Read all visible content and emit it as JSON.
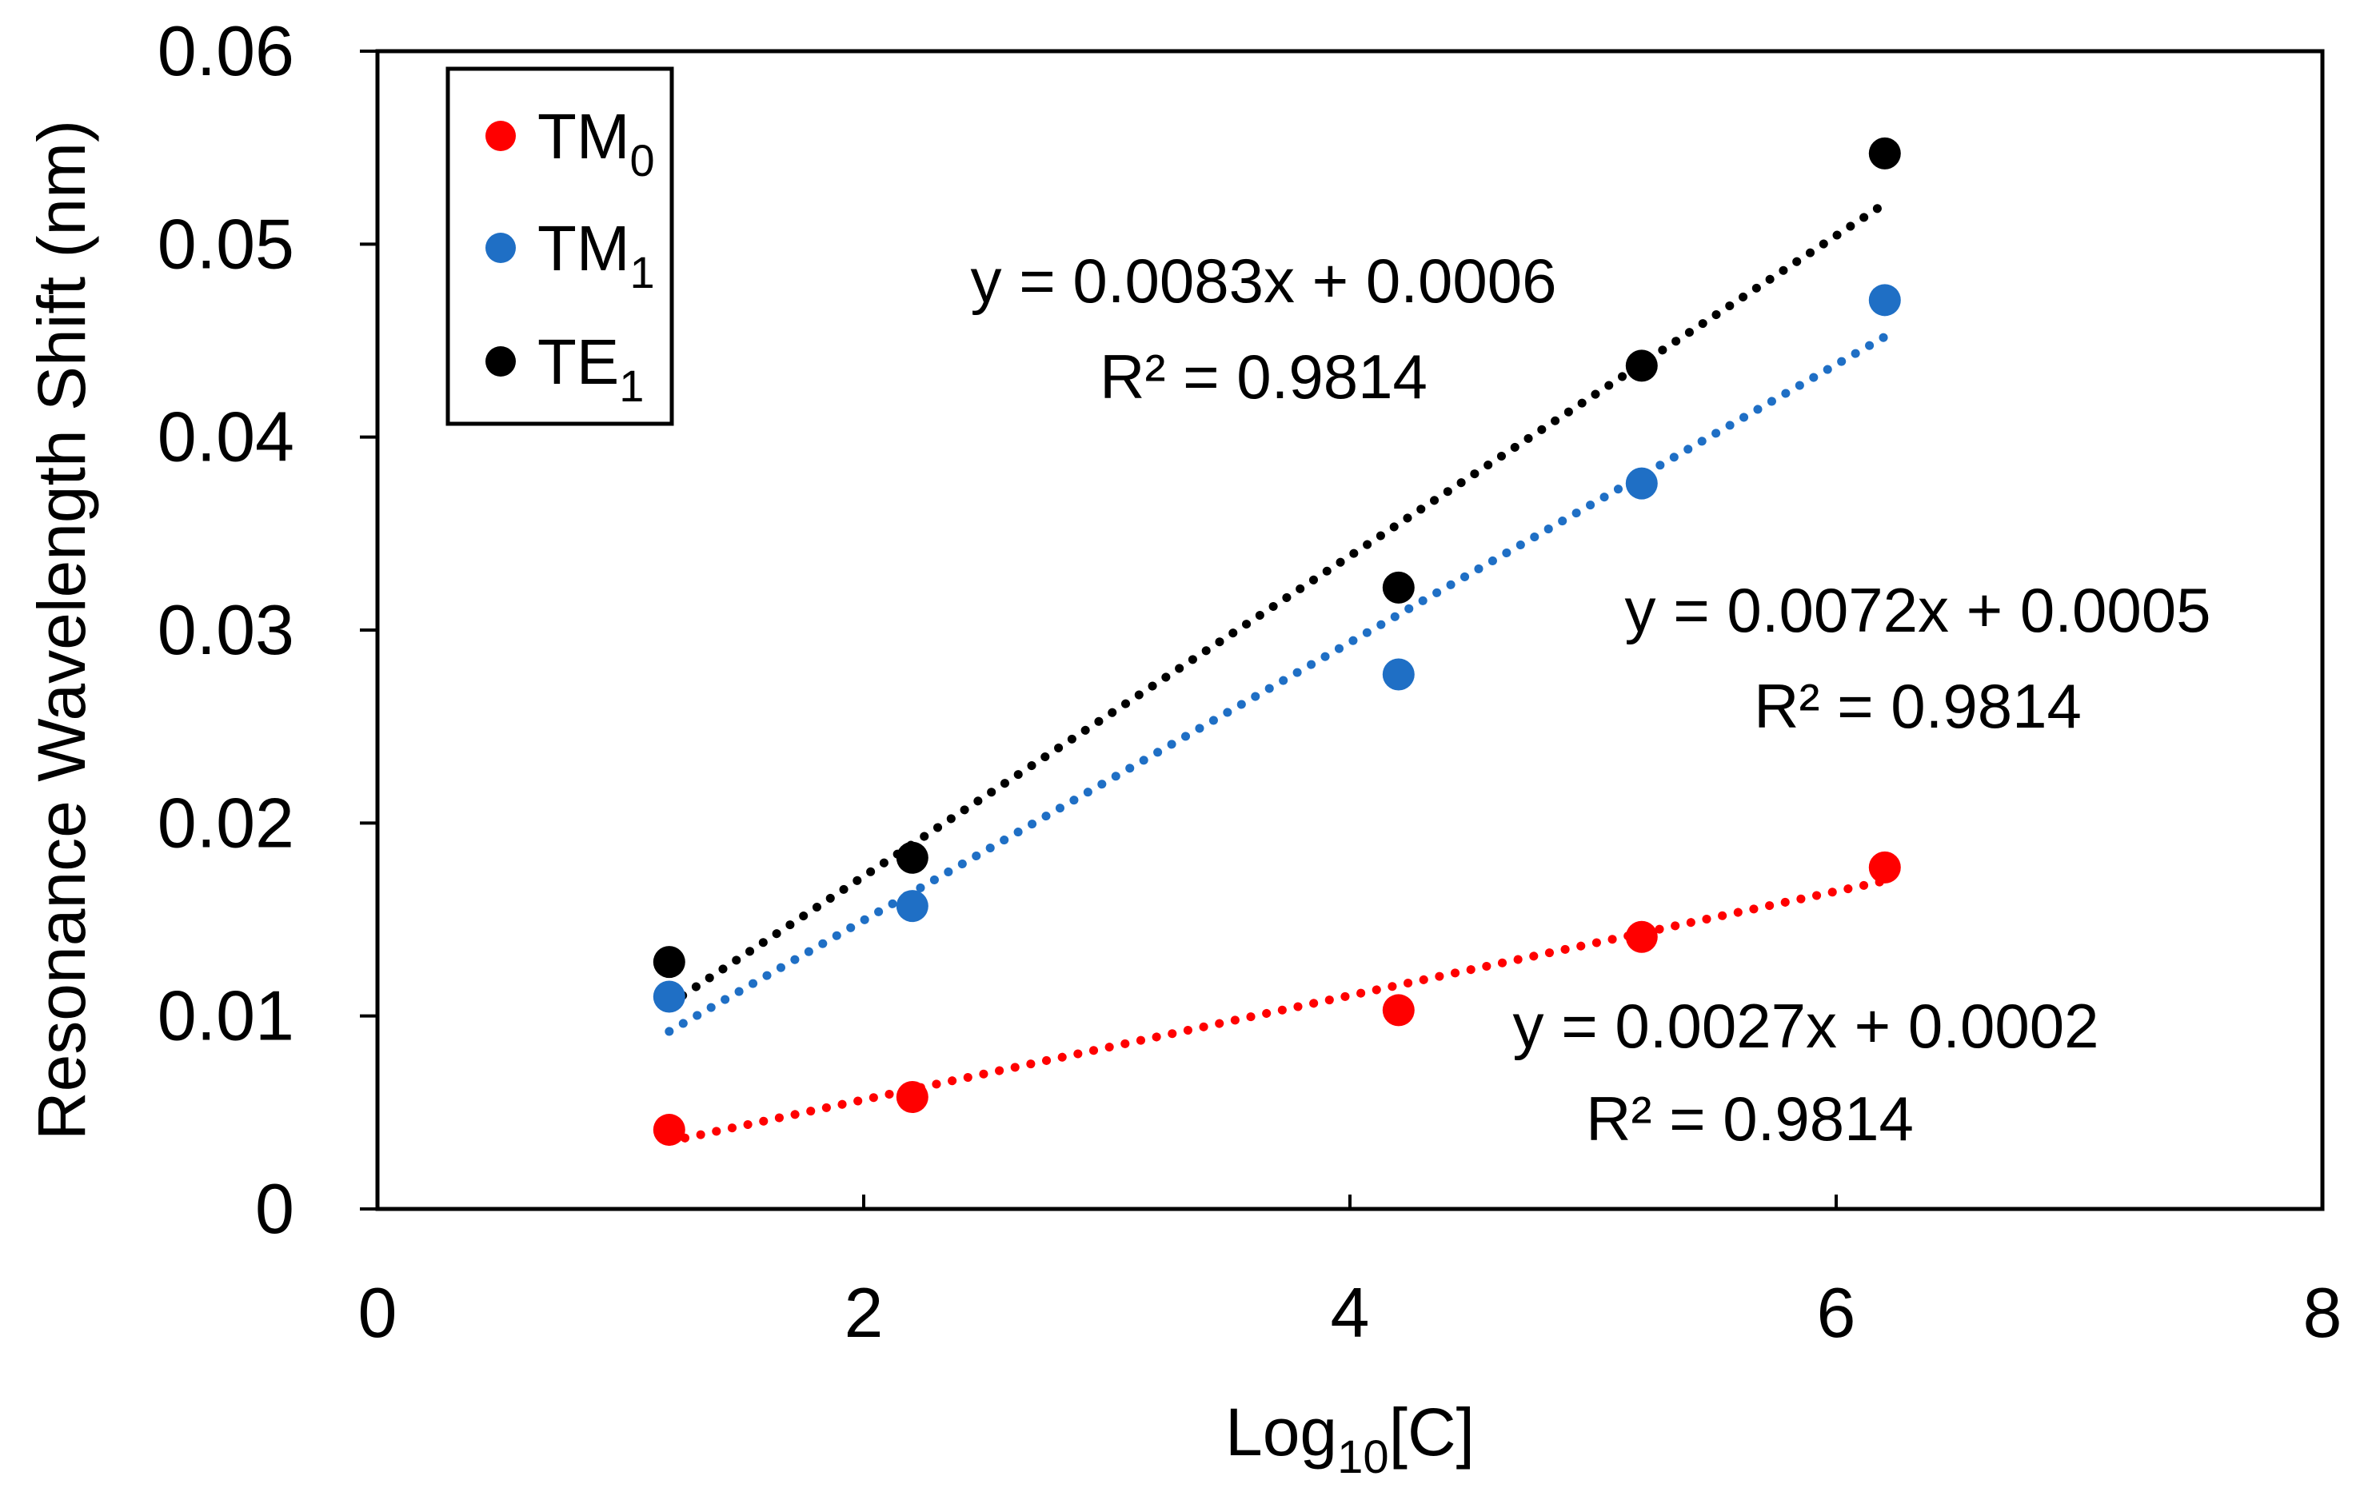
{
  "chart_data": {
    "type": "scatter",
    "title": "",
    "xlabel": {
      "main": "Log",
      "sub": "10",
      "tail": "[C]"
    },
    "ylabel": "Resonance Wavelength Shift (nm)",
    "xlim": [
      0,
      8
    ],
    "ylim": [
      0,
      0.06
    ],
    "x_ticks": [
      0,
      2,
      4,
      6,
      8
    ],
    "x_tick_labels": [
      "0",
      "2",
      "4",
      "6",
      "8"
    ],
    "y_ticks": [
      0,
      0.01,
      0.02,
      0.03,
      0.04,
      0.05,
      0.06
    ],
    "y_tick_labels": [
      "0",
      "0.01",
      "0.02",
      "0.03",
      "0.04",
      "0.05",
      "0.06"
    ],
    "grid": false,
    "legend_position": "top-left",
    "series": [
      {
        "name": "TM0",
        "label_main": "TM",
        "label_sub": "0",
        "color": "#ff0000",
        "x": [
          1.2,
          2.2,
          4.2,
          5.2,
          6.2
        ],
        "y": [
          0.0041,
          0.0058,
          0.0103,
          0.0141,
          0.0177
        ],
        "trendline": {
          "x": [
            1.2,
            6.2
          ],
          "y": [
            0.0035,
            0.017
          ]
        },
        "equation": "y = 0.0027x + 0.0002",
        "r2_label": "R² = 0.9814"
      },
      {
        "name": "TM1",
        "label_main": "TM",
        "label_sub": "1",
        "color": "#1f6fc5",
        "x": [
          1.2,
          2.2,
          4.2,
          5.2,
          6.2
        ],
        "y": [
          0.011,
          0.0157,
          0.0277,
          0.0376,
          0.0471
        ],
        "trendline": {
          "x": [
            1.2,
            6.2
          ],
          "y": [
            0.0092,
            0.0452
          ]
        },
        "equation": "y = 0.0072x + 0.0005",
        "r2_label": "R² = 0.9814"
      },
      {
        "name": "TE1",
        "label_main": "TE",
        "label_sub": "1",
        "color": "#000000",
        "x": [
          1.2,
          2.2,
          4.2,
          5.2,
          6.2
        ],
        "y": [
          0.0128,
          0.0182,
          0.0322,
          0.0437,
          0.0547
        ],
        "trendline": {
          "x": [
            1.2,
            6.2
          ],
          "y": [
            0.0106,
            0.0521
          ]
        },
        "equation": "y = 0.0083x + 0.0006",
        "r2_label": "R² = 0.9814"
      }
    ]
  }
}
